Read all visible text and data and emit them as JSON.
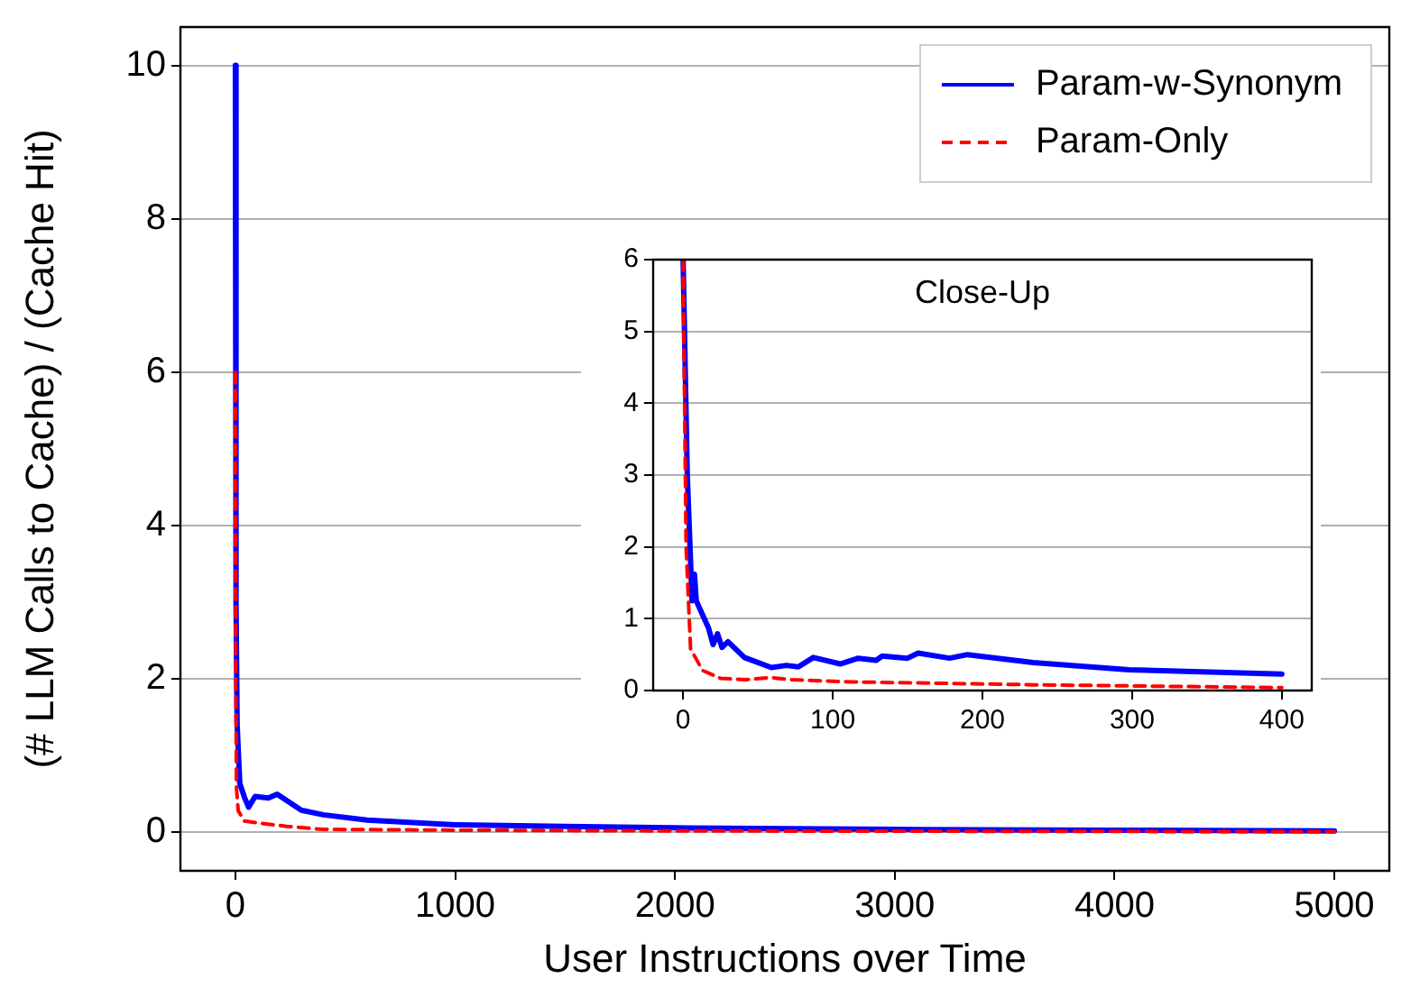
{
  "chart_data": [
    {
      "type": "line",
      "xlabel": "User Instructions over Time",
      "ylabel": "(# LLM Calls to Cache) / (Cache Hit)",
      "xlim": [
        -250,
        5250
      ],
      "ylim": [
        -0.5,
        10.5
      ],
      "xticks": [
        0,
        1000,
        2000,
        3000,
        4000,
        5000
      ],
      "yticks": [
        0,
        2,
        4,
        6,
        8,
        10
      ],
      "grid": "y",
      "legend": "top right",
      "series": [
        {
          "name": "Param-w-Synonym",
          "color": "#0000ff",
          "line_style": "solid",
          "x": [
            0,
            3,
            8,
            20,
            41,
            60,
            90,
            150,
            190,
            300,
            400,
            600,
            1000,
            1500,
            2000,
            3000,
            4000,
            5000
          ],
          "values": [
            10,
            3,
            1.4,
            0.64,
            0.46,
            0.33,
            0.47,
            0.45,
            0.5,
            0.29,
            0.23,
            0.16,
            0.1,
            0.08,
            0.06,
            0.04,
            0.03,
            0.02
          ]
        },
        {
          "name": "Param-Only",
          "color": "#ff0000",
          "line_style": "dashed",
          "x": [
            0,
            2,
            5,
            13,
            41,
            113,
            234,
            400,
            1000,
            2000,
            5000
          ],
          "values": [
            6,
            2,
            0.58,
            0.28,
            0.15,
            0.12,
            0.08,
            0.04,
            0.03,
            0.02,
            0.01
          ]
        }
      ]
    },
    {
      "type": "line",
      "title": "Close-Up",
      "xlim": [
        -20,
        420
      ],
      "ylim": [
        0,
        6
      ],
      "xticks": [
        0,
        100,
        200,
        300,
        400
      ],
      "yticks": [
        0,
        1,
        2,
        3,
        4,
        5,
        6
      ],
      "grid": "y",
      "series": [
        {
          "color": "#0000ff",
          "line_style": "solid",
          "x": [
            0,
            2.8,
            6,
            7.6,
            8.8,
            17,
            20,
            23,
            26,
            30,
            41,
            59,
            69,
            77,
            87,
            105,
            117,
            129,
            133,
            150,
            157,
            178,
            190,
            234,
            298,
            400
          ],
          "values": [
            6,
            3,
            1.25,
            1.62,
            1.25,
            0.87,
            0.64,
            0.79,
            0.6,
            0.68,
            0.46,
            0.32,
            0.35,
            0.33,
            0.46,
            0.37,
            0.45,
            0.42,
            0.48,
            0.45,
            0.52,
            0.45,
            0.5,
            0.39,
            0.29,
            0.23
          ]
        },
        {
          "color": "#ff0000",
          "line_style": "dashed",
          "x": [
            0,
            2,
            5,
            13,
            25,
            41,
            59,
            73,
            113,
            174,
            234,
            400
          ],
          "values": [
            6,
            2,
            0.58,
            0.28,
            0.17,
            0.15,
            0.18,
            0.15,
            0.12,
            0.1,
            0.08,
            0.04
          ]
        }
      ]
    }
  ]
}
